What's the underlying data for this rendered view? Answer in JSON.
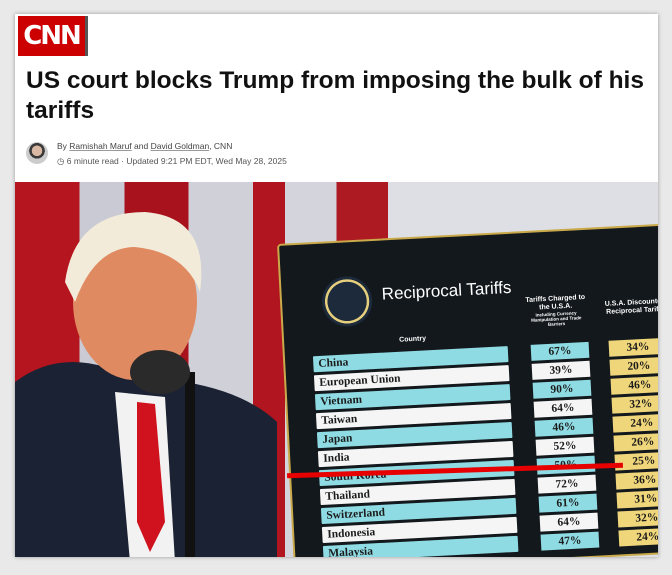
{
  "brand": {
    "logo": "CNN",
    "color": "#cc0000"
  },
  "article": {
    "headline": "US court blocks Trump from imposing the bulk of his tariffs",
    "byline_prefix": "By",
    "author1": "Ramishah Maruf",
    "and": "and",
    "author2": "David Goldman",
    "outlet": ", CNN",
    "read_time": "6 minute read",
    "updated": "· Updated 9:21 PM EDT, Wed May 28, 2025"
  },
  "board": {
    "title": "Reciprocal Tariffs",
    "col_country": "Country",
    "col_charged": "Tariffs Charged to the U.S.A.",
    "col_charged_note": "Including Currency Manipulation and Trade Barriers",
    "col_reciprocal": "U.S.A. Discounted Reciprocal Tariffs",
    "highlight_color": "#e60000",
    "rows": [
      {
        "country": "China",
        "charged": "67%",
        "reciprocal": "34%"
      },
      {
        "country": "European Union",
        "charged": "39%",
        "reciprocal": "20%"
      },
      {
        "country": "Vietnam",
        "charged": "90%",
        "reciprocal": "46%"
      },
      {
        "country": "Taiwan",
        "charged": "64%",
        "reciprocal": "32%"
      },
      {
        "country": "Japan",
        "charged": "46%",
        "reciprocal": "24%"
      },
      {
        "country": "India",
        "charged": "52%",
        "reciprocal": "26%"
      },
      {
        "country": "South Korea",
        "charged": "50%",
        "reciprocal": "25%"
      },
      {
        "country": "Thailand",
        "charged": "72%",
        "reciprocal": "36%"
      },
      {
        "country": "Switzerland",
        "charged": "61%",
        "reciprocal": "31%"
      },
      {
        "country": "Indonesia",
        "charged": "64%",
        "reciprocal": "32%"
      },
      {
        "country": "Malaysia",
        "charged": "47%",
        "reciprocal": "24%"
      }
    ]
  }
}
